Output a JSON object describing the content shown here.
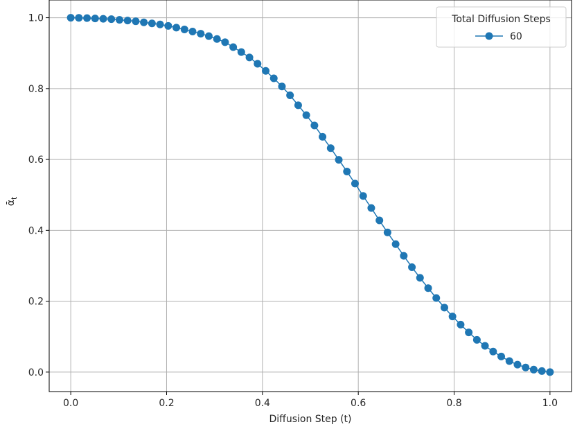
{
  "chart_data": {
    "type": "line",
    "title": "",
    "xlabel": "Diffusion Step (t)",
    "ylabel_main": "ᾱ",
    "ylabel_sub": "t",
    "xlim": [
      -0.045,
      1.045
    ],
    "ylim": [
      -0.055,
      1.05
    ],
    "x_ticks": [
      0.0,
      0.2,
      0.4,
      0.6,
      0.8,
      1.0
    ],
    "x_tick_labels": [
      "0.0",
      "0.2",
      "0.4",
      "0.6",
      "0.8",
      "1.0"
    ],
    "y_ticks": [
      0.0,
      0.2,
      0.4,
      0.6,
      0.8,
      1.0
    ],
    "y_tick_labels": [
      "0.0",
      "0.2",
      "0.4",
      "0.6",
      "0.8",
      "1.0"
    ],
    "grid": true,
    "legend": {
      "title": "Total Diffusion Steps",
      "placement": "top-right"
    },
    "colors": {
      "series": "#1f77b4",
      "grid": "#b0b0b0",
      "axes": "#000000"
    },
    "series": [
      {
        "name": "60",
        "x": [
          0.0,
          0.0169,
          0.0339,
          0.0508,
          0.0678,
          0.0847,
          0.1017,
          0.1186,
          0.1356,
          0.1525,
          0.1695,
          0.1864,
          0.2034,
          0.2203,
          0.2373,
          0.2542,
          0.2712,
          0.2881,
          0.3051,
          0.322,
          0.339,
          0.3559,
          0.3729,
          0.3898,
          0.4068,
          0.4237,
          0.4407,
          0.4576,
          0.4746,
          0.4915,
          0.5085,
          0.5254,
          0.5424,
          0.5593,
          0.5763,
          0.5932,
          0.6102,
          0.6271,
          0.6441,
          0.661,
          0.678,
          0.6949,
          0.7119,
          0.7288,
          0.7458,
          0.7627,
          0.7797,
          0.7966,
          0.8136,
          0.8305,
          0.8475,
          0.8644,
          0.8814,
          0.8983,
          0.9153,
          0.9322,
          0.9492,
          0.9661,
          0.9831,
          1.0
        ],
        "values": [
          1.0,
          0.9996,
          0.999,
          0.998,
          0.997,
          0.996,
          0.994,
          0.992,
          0.99,
          0.987,
          0.984,
          0.981,
          0.977,
          0.972,
          0.967,
          0.961,
          0.955,
          0.948,
          0.94,
          0.931,
          0.917,
          0.903,
          0.888,
          0.87,
          0.85,
          0.829,
          0.806,
          0.781,
          0.753,
          0.725,
          0.696,
          0.664,
          0.632,
          0.599,
          0.566,
          0.532,
          0.497,
          0.463,
          0.428,
          0.394,
          0.361,
          0.328,
          0.296,
          0.266,
          0.237,
          0.209,
          0.182,
          0.157,
          0.134,
          0.112,
          0.091,
          0.074,
          0.058,
          0.044,
          0.031,
          0.021,
          0.013,
          0.007,
          0.003,
          0.0
        ]
      }
    ]
  }
}
